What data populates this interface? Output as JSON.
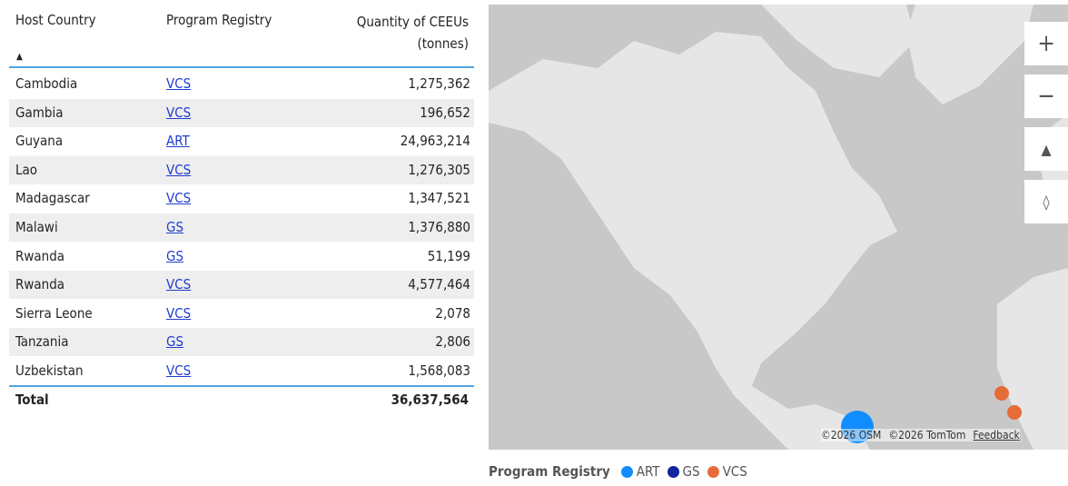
{
  "table": {
    "columns": [
      "Host Country",
      "Program Registry",
      "Quantity of CEEUs (tonnes)"
    ],
    "rows": [
      [
        "Cambodia",
        "VCS",
        "1,275,362"
      ],
      [
        "Gambia",
        "VCS",
        "196,652"
      ],
      [
        "Guyana",
        "ART",
        "24,963,214"
      ],
      [
        "Lao",
        "VCS",
        "1,276,305"
      ],
      [
        "Madagascar",
        "VCS",
        "1,347,521"
      ],
      [
        "Malawi",
        "GS",
        "1,376,880"
      ],
      [
        "Rwanda",
        "GS",
        "51,199"
      ],
      [
        "Rwanda",
        "VCS",
        "4,577,464"
      ],
      [
        "Sierra Leone",
        "VCS",
        "2,078"
      ],
      [
        "Tanzania",
        "GS",
        "2,806"
      ],
      [
        "Uzbekistan",
        "VCS",
        "1,568,083"
      ]
    ],
    "total": [
      "Total",
      "36,637,564"
    ]
  },
  "map": {
    "attribution": [
      "©2026 OSM",
      "©2026 TomTom"
    ],
    "feedback": "Feedback",
    "legend": {
      "title": "Program Registry",
      "items": [
        {
          "name": "ART",
          "color": "#118dff"
        },
        {
          "name": "GS",
          "color": "#12239e"
        },
        {
          "name": "VCS",
          "color": "#e66c37"
        }
      ]
    }
  }
}
